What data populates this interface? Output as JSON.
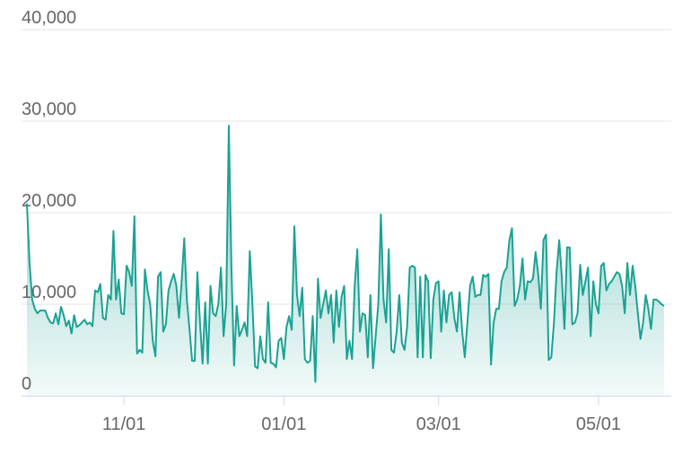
{
  "chart_data": {
    "type": "area",
    "color": "#1ba294",
    "categories": [
      "09/25",
      "09/26",
      "09/27",
      "09/28",
      "09/29",
      "09/30",
      "10/01",
      "10/02",
      "10/03",
      "10/04",
      "10/05",
      "10/06",
      "10/07",
      "10/08",
      "10/09",
      "10/10",
      "10/11",
      "10/12",
      "10/13",
      "10/14",
      "10/15",
      "10/16",
      "10/17",
      "10/18",
      "10/19",
      "10/20",
      "10/21",
      "10/22",
      "10/23",
      "10/24",
      "10/25",
      "10/26",
      "10/27",
      "10/28",
      "10/29",
      "10/30",
      "10/31",
      "11/01",
      "11/02",
      "11/03",
      "11/04",
      "11/05",
      "11/06",
      "11/07",
      "11/08",
      "11/09",
      "11/10",
      "11/11",
      "11/12",
      "11/13",
      "11/14",
      "11/15",
      "11/16",
      "11/17",
      "11/18",
      "11/19",
      "11/20",
      "11/21",
      "11/22",
      "11/23",
      "11/24",
      "11/25",
      "11/26",
      "11/27",
      "11/28",
      "11/29",
      "11/30",
      "12/01",
      "12/02",
      "12/03",
      "12/04",
      "12/05",
      "12/06",
      "12/07",
      "12/08",
      "12/09",
      "12/10",
      "12/11",
      "12/12",
      "12/13",
      "12/14",
      "12/15",
      "12/16",
      "12/17",
      "12/18",
      "12/19",
      "12/20",
      "12/21",
      "12/22",
      "12/23",
      "12/24",
      "12/25",
      "12/26",
      "12/27",
      "12/28",
      "12/29",
      "12/30",
      "12/31",
      "01/01",
      "01/02",
      "01/03",
      "01/04",
      "01/05",
      "01/06",
      "01/07",
      "01/08",
      "01/09",
      "01/10",
      "01/11",
      "01/12",
      "01/13",
      "01/14",
      "01/15",
      "01/16",
      "01/17",
      "01/18",
      "01/19",
      "01/20",
      "01/21",
      "01/22",
      "01/23",
      "01/24",
      "01/25",
      "01/26",
      "01/27",
      "01/28",
      "01/29",
      "01/30",
      "01/31",
      "02/01",
      "02/02",
      "02/03",
      "02/04",
      "02/05",
      "02/06",
      "02/07",
      "02/08",
      "02/09",
      "02/10",
      "02/11",
      "02/12",
      "02/13",
      "02/14",
      "02/15",
      "02/16",
      "02/17",
      "02/18",
      "02/19",
      "02/20",
      "02/21",
      "02/22",
      "02/23",
      "02/24",
      "02/25",
      "02/26",
      "02/27",
      "02/28",
      "03/01",
      "03/02",
      "03/03",
      "03/04",
      "03/05",
      "03/06",
      "03/07",
      "03/08",
      "03/09",
      "03/10",
      "03/11",
      "03/12",
      "03/13",
      "03/14",
      "03/15",
      "03/16",
      "03/17",
      "03/18",
      "03/19",
      "03/20",
      "03/21",
      "03/22",
      "03/23",
      "03/24",
      "03/25",
      "03/26",
      "03/27",
      "03/28",
      "03/29",
      "03/30",
      "03/31",
      "04/01",
      "04/02",
      "04/03",
      "04/04",
      "04/05",
      "04/06",
      "04/07",
      "04/08",
      "04/09",
      "04/10",
      "04/11",
      "04/12",
      "04/13",
      "04/14",
      "04/15",
      "04/16",
      "04/17",
      "04/18",
      "04/19",
      "04/20",
      "04/21",
      "04/22",
      "04/23",
      "04/24",
      "04/25",
      "04/26",
      "04/27",
      "04/28",
      "04/29",
      "04/30",
      "05/01",
      "05/02",
      "05/03",
      "05/04",
      "05/05",
      "05/06",
      "05/07",
      "05/08",
      "05/09",
      "05/10",
      "05/11",
      "05/12",
      "05/13",
      "05/14",
      "05/15",
      "05/16",
      "05/17",
      "05/18",
      "05/19",
      "05/20",
      "05/21",
      "05/22",
      "05/23",
      "05/24",
      "05/25",
      "05/26"
    ],
    "values": [
      21000,
      14500,
      10500,
      9500,
      9000,
      9300,
      9300,
      9300,
      8500,
      8000,
      7900,
      9000,
      7800,
      9700,
      8800,
      7600,
      8200,
      6800,
      8800,
      7500,
      7700,
      8000,
      8300,
      7800,
      8000,
      7600,
      11500,
      11300,
      12200,
      8500,
      8300,
      11000,
      10500,
      18000,
      10500,
      12700,
      9000,
      8900,
      14200,
      13500,
      12000,
      19600,
      4600,
      5000,
      4700,
      13800,
      11500,
      10000,
      6000,
      4300,
      13000,
      13500,
      7000,
      7800,
      11500,
      12500,
      13300,
      12000,
      8500,
      12500,
      17200,
      10500,
      7300,
      3800,
      3800,
      13500,
      8000,
      3500,
      10200,
      3500,
      12000,
      9000,
      8700,
      10000,
      14000,
      6500,
      10000,
      29500,
      14000,
      3300,
      9800,
      6500,
      7200,
      8000,
      6500,
      15800,
      10000,
      3200,
      3000,
      6500,
      4000,
      3600,
      10200,
      3600,
      3500,
      3100,
      6000,
      6300,
      4000,
      7500,
      8700,
      7200,
      18500,
      11000,
      8700,
      11800,
      4000,
      3600,
      3800,
      8700,
      1500,
      12800,
      8500,
      10000,
      11500,
      9000,
      11000,
      5800,
      11500,
      7500,
      10800,
      12000,
      4000,
      6000,
      4000,
      12000,
      16000,
      7000,
      9000,
      8800,
      4200,
      11000,
      3000,
      6500,
      10000,
      19800,
      10500,
      8000,
      16000,
      5000,
      4700,
      7000,
      11000,
      5800,
      5000,
      7500,
      14000,
      14200,
      14000,
      4200,
      13000,
      4200,
      13200,
      12500,
      4100,
      10500,
      12300,
      12500,
      7000,
      11500,
      8000,
      11000,
      11300,
      8500,
      7000,
      11300,
      7000,
      4200,
      8000,
      12000,
      13000,
      10800,
      11000,
      11000,
      13200,
      13000,
      13300,
      3400,
      8000,
      9500,
      9500,
      12500,
      13500,
      14000,
      17000,
      18300,
      9800,
      10500,
      12000,
      15000,
      10500,
      12500,
      12400,
      12800,
      15700,
      13300,
      9500,
      17000,
      17600,
      3900,
      4200,
      8000,
      13500,
      17000,
      13000,
      7300,
      16200,
      16200,
      7800,
      8000,
      9000,
      14300,
      11000,
      12500,
      14000,
      6500,
      12500,
      10000,
      9000,
      14200,
      14500,
      11500,
      12200,
      12500,
      13000,
      13500,
      13300,
      12000,
      9000,
      14500,
      11000,
      14200,
      12000,
      9000,
      6200,
      8000,
      11000,
      9500,
      7300,
      10500,
      10500,
      10300,
      10000,
      9800
    ],
    "xticks": [
      "11/01",
      "01/01",
      "03/01",
      "05/01"
    ],
    "ylim": [
      0,
      40000
    ],
    "yticks": [
      0,
      {
        "value": 10000,
        "label": "10,000"
      },
      {
        "value": 20000,
        "label": "20,000"
      },
      {
        "value": 30000,
        "label": "30,000"
      },
      {
        "value": 40000,
        "label": "40,000"
      }
    ],
    "grid": true
  }
}
